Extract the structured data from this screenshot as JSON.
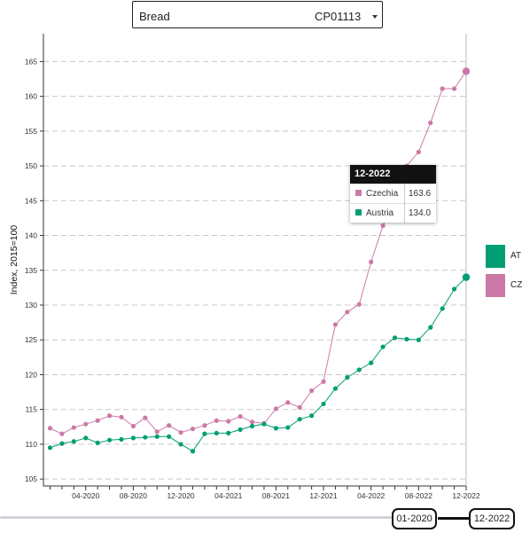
{
  "selector": {
    "product_name": "Bread",
    "product_code": "CP01113",
    "caret_icon": "chevron-down-icon"
  },
  "tooltip": {
    "date": "12-2022",
    "rows": [
      {
        "name": "Czechia",
        "value": "163.6",
        "color": "#cc79a7"
      },
      {
        "name": "Austria",
        "value": "134.0",
        "color": "#009e73"
      }
    ]
  },
  "legend": {
    "items": [
      {
        "code": "AT",
        "color": "#009e73"
      },
      {
        "code": "CZ",
        "color": "#cc79a7"
      }
    ]
  },
  "slider": {
    "start_label": "01-2020",
    "end_label": "12-2022"
  },
  "chart_data": {
    "type": "line",
    "ylabel": "Index, 2015=100",
    "ylim": [
      104,
      169
    ],
    "yticks": [
      105,
      110,
      115,
      120,
      125,
      130,
      135,
      140,
      145,
      150,
      155,
      160,
      165
    ],
    "x": [
      "01-2020",
      "02-2020",
      "03-2020",
      "04-2020",
      "05-2020",
      "06-2020",
      "07-2020",
      "08-2020",
      "09-2020",
      "10-2020",
      "11-2020",
      "12-2020",
      "01-2021",
      "02-2021",
      "03-2021",
      "04-2021",
      "05-2021",
      "06-2021",
      "07-2021",
      "08-2021",
      "09-2021",
      "10-2021",
      "11-2021",
      "12-2021",
      "01-2022",
      "02-2022",
      "03-2022",
      "04-2022",
      "05-2022",
      "06-2022",
      "07-2022",
      "08-2022",
      "09-2022",
      "10-2022",
      "11-2022",
      "12-2022"
    ],
    "xtick_labels": [
      "04-2020",
      "08-2020",
      "12-2020",
      "04-2021",
      "08-2021",
      "12-2021",
      "04-2022",
      "08-2022",
      "12-2022"
    ],
    "grid": "horizontal-dashed",
    "series": [
      {
        "name": "Czechia",
        "code": "CZ",
        "color": "#cc79a7",
        "values": [
          112.3,
          111.5,
          112.4,
          112.9,
          113.4,
          114.1,
          113.9,
          112.6,
          113.8,
          111.8,
          112.7,
          111.7,
          112.2,
          112.7,
          113.4,
          113.3,
          114.0,
          113.2,
          113.0,
          115.1,
          116.0,
          115.3,
          117.7,
          119.0,
          127.2,
          129.0,
          130.1,
          136.2,
          141.4,
          145.1,
          150.0,
          152.0,
          156.2,
          161.1,
          161.1,
          163.6
        ]
      },
      {
        "name": "Austria",
        "code": "AT",
        "color": "#009e73",
        "values": [
          109.5,
          110.1,
          110.4,
          110.9,
          110.2,
          110.6,
          110.7,
          110.9,
          111.0,
          111.1,
          111.1,
          110.0,
          109.0,
          111.5,
          111.6,
          111.6,
          112.1,
          112.6,
          112.9,
          112.3,
          112.4,
          113.6,
          114.1,
          115.8,
          118.0,
          119.6,
          120.7,
          121.7,
          124.0,
          125.3,
          125.1,
          125.0,
          126.8,
          129.5,
          132.3,
          134.0
        ]
      }
    ],
    "highlight": {
      "x": "12-2022",
      "values": {
        "CZ": 163.6,
        "AT": 134.0
      }
    }
  }
}
